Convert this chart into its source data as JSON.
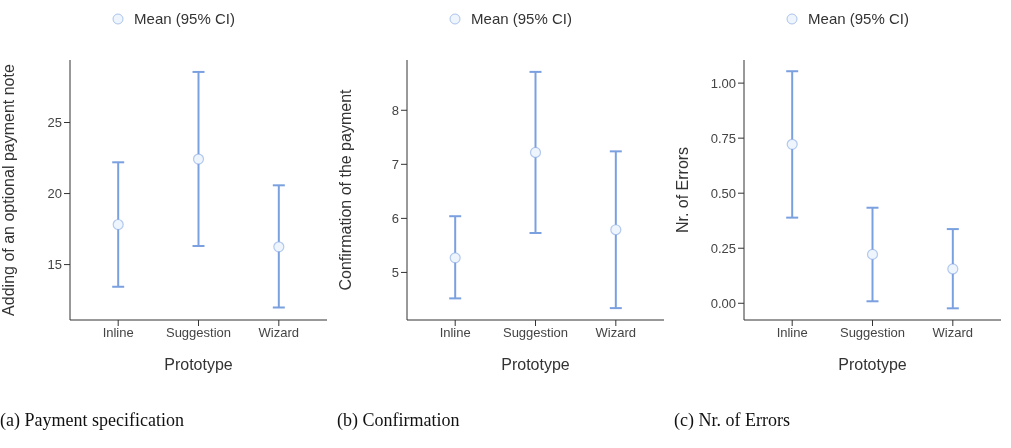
{
  "chart_data": [
    {
      "type": "scatter",
      "categories": [
        "Inline",
        "Suggestion",
        "Wizard"
      ],
      "xlabel": "Prototype",
      "ylabel": "Adding of an optional payment note",
      "ylim": [
        11.1,
        29.4
      ],
      "yticks": [
        15,
        20,
        25
      ],
      "grid": false,
      "legend": "top",
      "marker": "circle",
      "annotations": [
        "(a) Payment specification"
      ],
      "series": [
        {
          "name": "Mean (95% CI)",
          "color": "#7ba0e0",
          "values": [
            17.82,
            22.43,
            16.25
          ],
          "errors": [
            [
              13.44,
              22.2
            ],
            [
              16.31,
              28.56
            ],
            [
              11.98,
              20.58
            ]
          ]
        }
      ]
    },
    {
      "type": "scatter",
      "categories": [
        "Inline",
        "Suggestion",
        "Wizard"
      ],
      "xlabel": "Prototype",
      "ylabel": "Confirmation of the payment",
      "ylim": [
        4.12,
        8.93
      ],
      "yticks": [
        5,
        6,
        7,
        8
      ],
      "grid": false,
      "legend": "top",
      "marker": "circle",
      "annotations": [
        "(b) Confirmation"
      ],
      "series": [
        {
          "name": "Mean (95% CI)",
          "color": "#7ba0e0",
          "values": [
            5.27,
            7.22,
            5.79
          ],
          "errors": [
            [
              4.52,
              6.04
            ],
            [
              5.73,
              8.71
            ],
            [
              4.34,
              7.24
            ]
          ]
        }
      ]
    },
    {
      "type": "scatter",
      "categories": [
        "Inline",
        "Suggestion",
        "Wizard"
      ],
      "xlabel": "Prototype",
      "ylabel": "Nr. of Errors",
      "ylim": [
        -0.076,
        1.105
      ],
      "yticks": [
        {
          "value": 0,
          "label": "0.00"
        },
        {
          "value": 0.25,
          "label": "0.25"
        },
        {
          "value": 0.5,
          "label": "0.50"
        },
        {
          "value": 0.75,
          "label": "0.75"
        },
        {
          "value": 1,
          "label": "1.00"
        }
      ],
      "grid": false,
      "legend": "top",
      "marker": "circle",
      "annotations": [
        "(c) Nr. of Errors"
      ],
      "series": [
        {
          "name": "Mean (95% CI)",
          "color": "#7ba0e0",
          "values": [
            0.722,
            0.222,
            0.156
          ],
          "errors": [
            [
              0.389,
              1.054
            ],
            [
              0.009,
              0.434
            ],
            [
              -0.023,
              0.337
            ]
          ]
        }
      ]
    }
  ]
}
